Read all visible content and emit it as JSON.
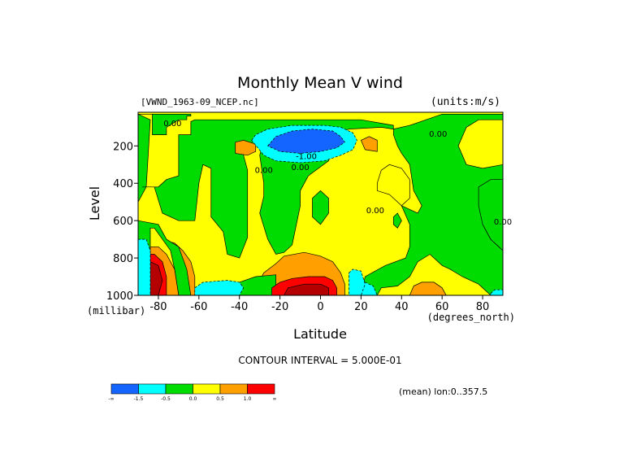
{
  "chart_data": {
    "type": "heatmap",
    "title": "Monthly Mean V wind",
    "dataset_label": "[VWND_1963-09_NCEP.nc]",
    "units_label": "(units:m/s)",
    "xlabel": "Latitude",
    "xunits": "(degrees_north)",
    "ylabel": "Level",
    "yunits": "(millibar)",
    "xlim": [
      -90,
      90
    ],
    "ylim": [
      1000,
      20
    ],
    "y_inverted": true,
    "x_ticks": [
      -80,
      -60,
      -40,
      -20,
      0,
      20,
      40,
      60,
      80
    ],
    "y_ticks": [
      200,
      400,
      600,
      800,
      1000
    ],
    "contour_interval_text": "CONTOUR INTERVAL = 5.000E-01",
    "mean_text": "(mean) lon:0..357.5",
    "contour_labels": [
      {
        "text": "0.00",
        "lat": -73,
        "lev": 95
      },
      {
        "text": "0.00",
        "lat": -28,
        "lev": 345
      },
      {
        "text": "0.00",
        "lat": -10,
        "lev": 330
      },
      {
        "text": "-1.00",
        "lat": -7,
        "lev": 270
      },
      {
        "text": "0.00",
        "lat": 58,
        "lev": 150
      },
      {
        "text": "0.00",
        "lat": 27,
        "lev": 560
      },
      {
        "text": "0.00",
        "lat": 90,
        "lev": 620
      }
    ],
    "legend": {
      "colors": [
        "#1464ff",
        "#00ffff",
        "#00dc00",
        "#ffff00",
        "#ffa000",
        "#ff0000"
      ],
      "tick_labels": [
        "-∞",
        "-1.5",
        "-0.5",
        "0.0",
        "0.5",
        "1.0",
        "∞"
      ]
    },
    "fill_colors": {
      "strong_negative": "#1464ff",
      "negative": "#00ffff",
      "weak_negative": "#00dc00",
      "weak_positive": "#ffff00",
      "positive": "#ffa000",
      "strong_positive": "#ff0000",
      "max_positive": "#b40000"
    },
    "regions": [
      {
        "level": "weak_positive",
        "poly": [
          [
            -90,
            20
          ],
          [
            90,
            20
          ],
          [
            90,
            1000
          ],
          [
            -90,
            1000
          ]
        ]
      },
      {
        "level": "weak_negative",
        "poly": [
          [
            -90,
            30
          ],
          [
            -83,
            30
          ],
          [
            -83,
            140
          ],
          [
            -76,
            140
          ],
          [
            -76,
            100
          ],
          [
            -70,
            60
          ],
          [
            -66,
            60
          ],
          [
            -66,
            40
          ],
          [
            -64,
            40
          ],
          [
            -64,
            30
          ],
          [
            -90,
            30
          ]
        ]
      },
      {
        "level": "weak_negative",
        "poly": [
          [
            -90,
            30
          ],
          [
            -84,
            60
          ],
          [
            -86,
            420
          ],
          [
            -90,
            500
          ]
        ]
      },
      {
        "level": "weak_negative",
        "poly": [
          [
            -88,
            420
          ],
          [
            -82,
            420
          ],
          [
            -78,
            560
          ],
          [
            -70,
            600
          ],
          [
            -62,
            600
          ],
          [
            -60,
            400
          ],
          [
            -58,
            300
          ],
          [
            -54,
            320
          ],
          [
            -54,
            580
          ],
          [
            -48,
            660
          ],
          [
            -46,
            780
          ],
          [
            -40,
            800
          ],
          [
            -36,
            690
          ],
          [
            -36,
            330
          ],
          [
            -38,
            250
          ],
          [
            -32,
            200
          ],
          [
            -28,
            170
          ],
          [
            -30,
            250
          ],
          [
            -28,
            400
          ],
          [
            -28,
            470
          ],
          [
            -30,
            560
          ],
          [
            -26,
            700
          ],
          [
            -22,
            780
          ],
          [
            -18,
            770
          ],
          [
            -14,
            730
          ],
          [
            -10,
            520
          ],
          [
            -10,
            440
          ],
          [
            -6,
            360
          ],
          [
            4,
            280
          ],
          [
            6,
            140
          ],
          [
            14,
            110
          ],
          [
            30,
            100
          ],
          [
            36,
            110
          ],
          [
            36,
            90
          ],
          [
            20,
            60
          ],
          [
            -40,
            60
          ],
          [
            -62,
            60
          ],
          [
            -64,
            70
          ],
          [
            -64,
            140
          ],
          [
            -70,
            140
          ],
          [
            -70,
            360
          ],
          [
            -76,
            380
          ],
          [
            -80,
            420
          ],
          [
            -88,
            420
          ]
        ]
      },
      {
        "level": "weak_negative",
        "poly": [
          [
            36,
            110
          ],
          [
            36,
            140
          ],
          [
            38,
            200
          ],
          [
            40,
            240
          ],
          [
            44,
            300
          ],
          [
            46,
            440
          ],
          [
            50,
            520
          ],
          [
            48,
            560
          ],
          [
            40,
            520
          ],
          [
            44,
            620
          ],
          [
            44,
            740
          ],
          [
            42,
            800
          ],
          [
            32,
            840
          ],
          [
            22,
            900
          ],
          [
            20,
            1000
          ],
          [
            28,
            1000
          ],
          [
            30,
            960
          ],
          [
            38,
            950
          ],
          [
            44,
            900
          ],
          [
            48,
            820
          ],
          [
            54,
            780
          ],
          [
            60,
            840
          ],
          [
            64,
            860
          ],
          [
            70,
            900
          ],
          [
            78,
            940
          ],
          [
            84,
            1000
          ],
          [
            90,
            1000
          ],
          [
            90,
            760
          ],
          [
            84,
            700
          ],
          [
            80,
            620
          ],
          [
            80,
            500
          ],
          [
            86,
            460
          ],
          [
            90,
            440
          ],
          [
            90,
            300
          ],
          [
            80,
            320
          ],
          [
            72,
            300
          ],
          [
            68,
            200
          ],
          [
            72,
            100
          ],
          [
            78,
            60
          ],
          [
            90,
            60
          ],
          [
            90,
            30
          ],
          [
            60,
            30
          ],
          [
            44,
            90
          ]
        ]
      },
      {
        "level": "weak_negative",
        "poly": [
          [
            78,
            420
          ],
          [
            84,
            380
          ],
          [
            90,
            380
          ],
          [
            90,
            760
          ],
          [
            84,
            700
          ],
          [
            80,
            620
          ],
          [
            78,
            520
          ]
        ]
      },
      {
        "level": "weak_negative",
        "poly": [
          [
            -4,
            480
          ],
          [
            0,
            440
          ],
          [
            4,
            480
          ],
          [
            4,
            560
          ],
          [
            0,
            620
          ],
          [
            -4,
            580
          ]
        ]
      },
      {
        "level": "weak_negative",
        "poly": [
          [
            36,
            580
          ],
          [
            38,
            560
          ],
          [
            40,
            600
          ],
          [
            38,
            640
          ],
          [
            36,
            620
          ]
        ]
      },
      {
        "level": "weak_positive",
        "poly": [
          [
            28,
            400
          ],
          [
            30,
            330
          ],
          [
            34,
            300
          ],
          [
            40,
            320
          ],
          [
            44,
            380
          ],
          [
            44,
            480
          ],
          [
            40,
            520
          ],
          [
            34,
            460
          ],
          [
            28,
            440
          ]
        ]
      },
      {
        "level": "positive",
        "poly": [
          [
            -42,
            180
          ],
          [
            -38,
            170
          ],
          [
            -32,
            190
          ],
          [
            -32,
            230
          ],
          [
            -36,
            250
          ],
          [
            -42,
            240
          ]
        ]
      },
      {
        "level": "positive",
        "poly": [
          [
            20,
            170
          ],
          [
            24,
            150
          ],
          [
            28,
            170
          ],
          [
            28,
            230
          ],
          [
            22,
            220
          ]
        ]
      },
      {
        "level": "positive",
        "poly": [
          [
            -90,
            640
          ],
          [
            -84,
            640
          ],
          [
            -80,
            700
          ],
          [
            -72,
            720
          ],
          [
            -68,
            760
          ],
          [
            -64,
            820
          ],
          [
            -62,
            900
          ],
          [
            -62,
            1000
          ],
          [
            -90,
            1000
          ]
        ]
      },
      {
        "level": "positive",
        "poly": [
          [
            -30,
            920
          ],
          [
            -28,
            880
          ],
          [
            -22,
            830
          ],
          [
            -18,
            790
          ],
          [
            -8,
            770
          ],
          [
            0,
            790
          ],
          [
            6,
            820
          ],
          [
            10,
            880
          ],
          [
            12,
            940
          ],
          [
            12,
            1000
          ],
          [
            -30,
            1000
          ]
        ]
      },
      {
        "level": "positive",
        "poly": [
          [
            46,
            950
          ],
          [
            50,
            930
          ],
          [
            56,
            930
          ],
          [
            60,
            960
          ],
          [
            62,
            1000
          ],
          [
            44,
            1000
          ]
        ]
      },
      {
        "level": "weak_negative",
        "poly": [
          [
            -60,
            950
          ],
          [
            -40,
            930
          ],
          [
            -32,
            900
          ],
          [
            -22,
            890
          ],
          [
            -22,
            1000
          ],
          [
            -60,
            1000
          ]
        ]
      },
      {
        "level": "negative",
        "poly": [
          [
            -62,
            960
          ],
          [
            -58,
            930
          ],
          [
            -46,
            920
          ],
          [
            -40,
            930
          ],
          [
            -38,
            960
          ],
          [
            -40,
            1000
          ],
          [
            -62,
            1000
          ]
        ]
      },
      {
        "level": "negative",
        "poly": [
          [
            20,
            940
          ],
          [
            22,
            930
          ],
          [
            26,
            950
          ],
          [
            28,
            1000
          ],
          [
            20,
            1000
          ]
        ]
      },
      {
        "level": "weak_negative",
        "poly": [
          [
            -90,
            600
          ],
          [
            -80,
            620
          ],
          [
            -76,
            700
          ],
          [
            -70,
            740
          ],
          [
            -66,
            860
          ],
          [
            -64,
            1000
          ],
          [
            -90,
            1000
          ]
        ]
      },
      {
        "level": "weak_positive",
        "poly": [
          [
            -84,
            640
          ],
          [
            -82,
            640
          ],
          [
            -78,
            700
          ],
          [
            -74,
            760
          ],
          [
            -72,
            860
          ],
          [
            -70,
            1000
          ],
          [
            -84,
            1000
          ]
        ]
      },
      {
        "level": "positive",
        "poly": [
          [
            -84,
            740
          ],
          [
            -80,
            740
          ],
          [
            -76,
            780
          ],
          [
            -72,
            860
          ],
          [
            -70,
            1000
          ],
          [
            -84,
            1000
          ]
        ]
      },
      {
        "level": "strong_positive",
        "poly": [
          [
            -84,
            780
          ],
          [
            -82,
            780
          ],
          [
            -78,
            820
          ],
          [
            -76,
            900
          ],
          [
            -76,
            1000
          ],
          [
            -84,
            1000
          ]
        ]
      },
      {
        "level": "max_positive",
        "poly": [
          [
            -84,
            820
          ],
          [
            -80,
            840
          ],
          [
            -78,
            920
          ],
          [
            -80,
            1000
          ],
          [
            -84,
            1000
          ]
        ]
      },
      {
        "level": "negative",
        "poly": [
          [
            -34,
            170
          ],
          [
            -32,
            140
          ],
          [
            -26,
            110
          ],
          [
            -14,
            90
          ],
          [
            2,
            90
          ],
          [
            10,
            100
          ],
          [
            16,
            130
          ],
          [
            18,
            170
          ],
          [
            16,
            220
          ],
          [
            10,
            250
          ],
          [
            2,
            280
          ],
          [
            -10,
            290
          ],
          [
            -22,
            280
          ],
          [
            -28,
            250
          ]
        ]
      },
      {
        "level": "strong_negative",
        "poly": [
          [
            -26,
            200
          ],
          [
            -22,
            150
          ],
          [
            -14,
            120
          ],
          [
            -4,
            110
          ],
          [
            6,
            120
          ],
          [
            10,
            150
          ],
          [
            12,
            180
          ],
          [
            8,
            210
          ],
          [
            0,
            230
          ],
          [
            -10,
            240
          ],
          [
            -20,
            230
          ]
        ]
      },
      {
        "level": "strong_positive",
        "poly": [
          [
            -24,
            960
          ],
          [
            -20,
            930
          ],
          [
            -14,
            910
          ],
          [
            -6,
            900
          ],
          [
            2,
            900
          ],
          [
            6,
            920
          ],
          [
            8,
            960
          ],
          [
            8,
            1000
          ],
          [
            -24,
            1000
          ]
        ]
      },
      {
        "level": "max_positive",
        "poly": [
          [
            -18,
            1000
          ],
          [
            -16,
            960
          ],
          [
            -8,
            940
          ],
          [
            0,
            940
          ],
          [
            4,
            960
          ],
          [
            4,
            1000
          ]
        ]
      },
      {
        "level": "negative",
        "poly": [
          [
            -90,
            700
          ],
          [
            -86,
            700
          ],
          [
            -84,
            760
          ],
          [
            -84,
            1000
          ],
          [
            -90,
            1000
          ]
        ]
      },
      {
        "level": "negative",
        "poly": [
          [
            14,
            880
          ],
          [
            16,
            860
          ],
          [
            20,
            870
          ],
          [
            22,
            940
          ],
          [
            20,
            1000
          ],
          [
            14,
            1000
          ]
        ]
      },
      {
        "level": "negative",
        "poly": [
          [
            84,
            990
          ],
          [
            86,
            970
          ],
          [
            90,
            970
          ],
          [
            90,
            1000
          ],
          [
            84,
            1000
          ]
        ]
      }
    ]
  }
}
